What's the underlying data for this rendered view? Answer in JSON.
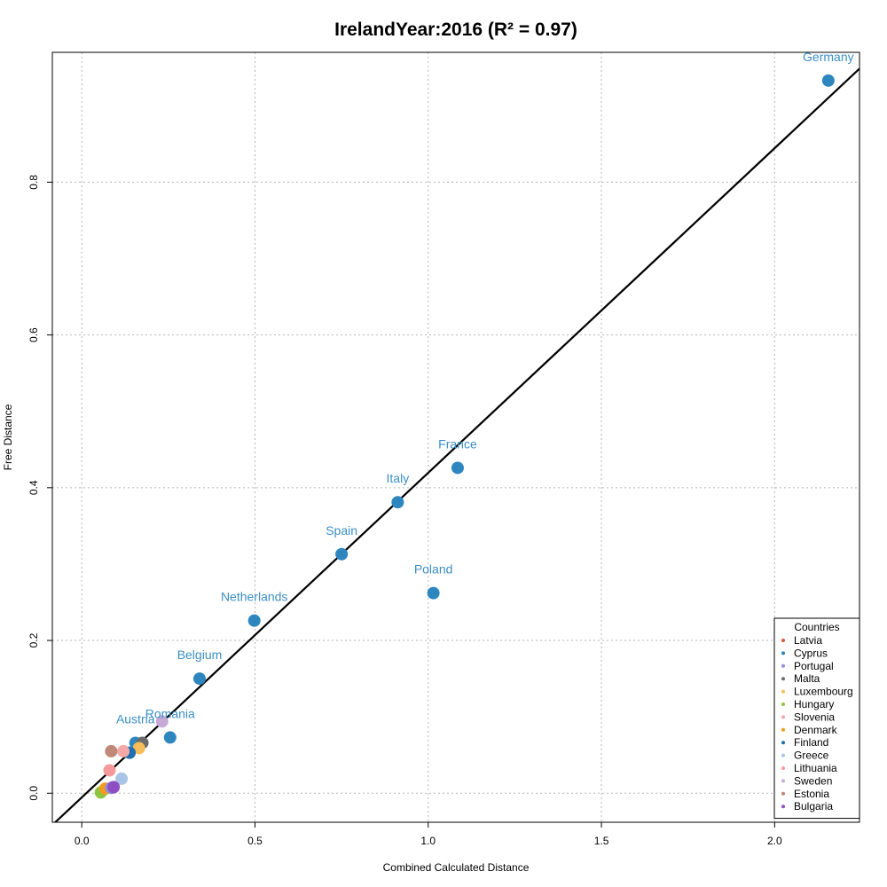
{
  "chart_data": {
    "type": "scatter",
    "title": "IrelandYear:2016 (R² = 0.97)",
    "xlabel": "Combined Calculated Distance",
    "ylabel": "Free Distance",
    "xlim": [
      -0.085,
      2.245
    ],
    "ylim": [
      -0.038,
      0.97
    ],
    "xticks": [
      "0.0",
      "0.5",
      "1.0",
      "1.5",
      "2.0"
    ],
    "xtick_values": [
      0.0,
      0.5,
      1.0,
      1.5,
      2.0
    ],
    "yticks": [
      "0.0",
      "0.2",
      "0.4",
      "0.6",
      "0.8"
    ],
    "ytick_values": [
      0.0,
      0.2,
      0.4,
      0.6,
      0.8
    ],
    "grid": true,
    "label_color": "#3b8fc6",
    "regression_line": {
      "slope": 0.425,
      "intercept": -0.0055,
      "color": "#000000"
    },
    "points": [
      {
        "name": "Germany",
        "x": 2.155,
        "y": 0.933,
        "color": "#2e86bf",
        "label": "Germany"
      },
      {
        "name": "France",
        "x": 1.085,
        "y": 0.426,
        "color": "#2e86bf",
        "label": "France"
      },
      {
        "name": "Italy",
        "x": 0.912,
        "y": 0.381,
        "color": "#2e86bf",
        "label": "Italy"
      },
      {
        "name": "Spain",
        "x": 0.75,
        "y": 0.313,
        "color": "#2e86bf",
        "label": "Spain"
      },
      {
        "name": "Poland",
        "x": 1.015,
        "y": 0.262,
        "color": "#2e86bf",
        "label": "Poland"
      },
      {
        "name": "Netherlands",
        "x": 0.498,
        "y": 0.226,
        "color": "#2e86bf",
        "label": "Netherlands"
      },
      {
        "name": "Belgium",
        "x": 0.34,
        "y": 0.15,
        "color": "#2e86bf",
        "label": "Belgium"
      },
      {
        "name": "Romania",
        "x": 0.255,
        "y": 0.073,
        "color": "#2e86bf",
        "label": "Romania"
      },
      {
        "name": "Austria",
        "x": 0.155,
        "y": 0.066,
        "color": "#2e86bf",
        "label": "Austria"
      },
      {
        "name": "Sweden-pt",
        "x": 0.232,
        "y": 0.094,
        "color": "#c7a9d6",
        "label": ""
      },
      {
        "name": "Malta-pt",
        "x": 0.175,
        "y": 0.066,
        "color": "#6b6b6b",
        "label": ""
      },
      {
        "name": "Luxembourg-pt",
        "x": 0.165,
        "y": 0.059,
        "color": "#f6bd58",
        "label": ""
      },
      {
        "name": "Finland-pt",
        "x": 0.138,
        "y": 0.053,
        "color": "#1f6fb2",
        "label": ""
      },
      {
        "name": "Slovenia-pt",
        "x": 0.12,
        "y": 0.055,
        "color": "#f4a9a8",
        "label": ""
      },
      {
        "name": "Estonia-pt",
        "x": 0.085,
        "y": 0.055,
        "color": "#c08878",
        "label": ""
      },
      {
        "name": "Lithuania-pt",
        "x": 0.08,
        "y": 0.03,
        "color": "#f59a9a",
        "label": ""
      },
      {
        "name": "Greece-pt",
        "x": 0.115,
        "y": 0.019,
        "color": "#a9c4e6",
        "label": ""
      },
      {
        "name": "Hungary-pt",
        "x": 0.055,
        "y": 0.001,
        "color": "#8cc63f",
        "label": ""
      },
      {
        "name": "Denmark-pt",
        "x": 0.068,
        "y": 0.006,
        "color": "#f39c1f",
        "label": ""
      },
      {
        "name": "Portugal-pt",
        "x": 0.085,
        "y": 0.007,
        "color": "#8f8fd6",
        "label": ""
      },
      {
        "name": "Bulgaria-pt",
        "x": 0.092,
        "y": 0.008,
        "color": "#8e4fc4",
        "label": ""
      }
    ],
    "legend": {
      "title": "Countries",
      "position": "bottom-right",
      "items": [
        {
          "label": "Latvia",
          "color": "#e0523a"
        },
        {
          "label": "Cyprus",
          "color": "#2e86bf"
        },
        {
          "label": "Portugal",
          "color": "#8f8fd6"
        },
        {
          "label": "Malta",
          "color": "#6b6b6b"
        },
        {
          "label": "Luxembourg",
          "color": "#f6bd58"
        },
        {
          "label": "Hungary",
          "color": "#8cc63f"
        },
        {
          "label": "Slovenia",
          "color": "#f4a9a8"
        },
        {
          "label": "Denmark",
          "color": "#f39c1f"
        },
        {
          "label": "Finland",
          "color": "#1f6fb2"
        },
        {
          "label": "Greece",
          "color": "#a9c4e6"
        },
        {
          "label": "Lithuania",
          "color": "#f59a9a"
        },
        {
          "label": "Sweden",
          "color": "#c7a9d6"
        },
        {
          "label": "Estonia",
          "color": "#c08878"
        },
        {
          "label": "Bulgaria",
          "color": "#8e4fc4"
        }
      ]
    }
  }
}
